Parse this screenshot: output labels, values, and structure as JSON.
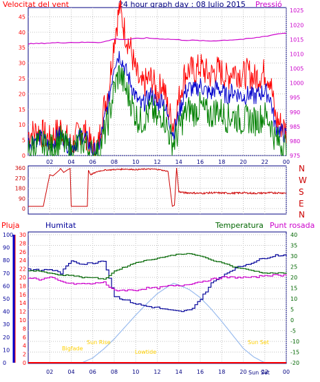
{
  "header": {
    "wind_title": "Velocitat del vent",
    "graph_title": "24 hour graph day : 08 Julio 2015",
    "pressure_title": "Pressió"
  },
  "compass": [
    "N",
    "W",
    "S",
    "E",
    "N"
  ],
  "lower_legend": {
    "rain": "Pluja",
    "humidity": "Humitat",
    "temperature": "Temperatura",
    "dewpoint": "Punt rosada"
  },
  "sun_labels": {
    "sunrise": "Sun Rise",
    "sunset": "Sun Set",
    "bigfade": "Bigfade",
    "lowtide": "Lowtide",
    "bottom_sunset": "Sun Set"
  },
  "colors": {
    "wind_gust": "#ff0000",
    "wind_avg": "#0000cc",
    "wind_green": "#008000",
    "pressure": "#cc00cc",
    "direction": "#cc0000",
    "humidity": "#000099",
    "temperature": "#006600",
    "dewpoint": "#cc00cc",
    "rain": "#ff0000",
    "solar": "#99bbee",
    "panel_border": "#000080",
    "grid": "#c0c0c0"
  },
  "chart_data": [
    {
      "type": "line",
      "name": "wind",
      "x_ticks": [
        "02",
        "04",
        "06",
        "08",
        "10",
        "12",
        "14",
        "16",
        "18",
        "20",
        "22",
        "00"
      ],
      "y_left_ticks": [
        0,
        5,
        10,
        15,
        20,
        25,
        30,
        35,
        40,
        45
      ],
      "y_right_ticks": [
        975,
        980,
        985,
        990,
        995,
        1000,
        1005,
        1010,
        1015,
        1020,
        1025
      ],
      "ylim_left": [
        0,
        48
      ],
      "ylim_right": [
        975,
        1026
      ],
      "x": [
        0,
        1,
        2,
        3,
        4,
        5,
        5.5,
        6,
        6.5,
        7,
        7.5,
        8,
        8.5,
        9,
        9.5,
        10,
        10.5,
        11,
        11.5,
        12,
        12.5,
        13,
        13.5,
        14,
        14.5,
        15,
        15.5,
        16,
        16.5,
        17,
        17.5,
        18,
        18.5,
        19,
        19.5,
        20,
        20.5,
        21,
        21.5,
        22,
        22.5,
        23,
        23.5,
        24
      ],
      "series": [
        {
          "values": [
            7,
            8,
            5,
            9,
            3,
            9,
            6,
            2,
            3,
            15,
            22,
            38,
            48,
            40,
            35,
            27,
            22,
            24,
            25,
            20,
            24,
            15,
            10,
            18,
            26,
            28,
            27,
            29,
            27,
            26,
            28,
            27,
            25,
            28,
            27,
            26,
            27,
            25,
            26,
            27,
            25,
            12,
            10,
            8
          ]
        },
        {
          "values": [
            4,
            6,
            3,
            7,
            2,
            7,
            5,
            1,
            2,
            10,
            18,
            30,
            33,
            28,
            24,
            19,
            16,
            18,
            20,
            16,
            19,
            12,
            7,
            13,
            20,
            22,
            21,
            23,
            21,
            20,
            22,
            21,
            19,
            21,
            20,
            19,
            20,
            19,
            20,
            21,
            19,
            9,
            8,
            6
          ]
        },
        {
          "values": [
            2,
            4,
            2,
            5,
            1,
            5,
            3,
            0,
            1,
            6,
            12,
            22,
            27,
            22,
            18,
            13,
            11,
            13,
            15,
            11,
            14,
            8,
            4,
            8,
            13,
            15,
            14,
            16,
            14,
            13,
            15,
            14,
            12,
            13,
            12,
            11,
            12,
            11,
            12,
            13,
            11,
            5,
            4,
            3
          ]
        },
        {
          "values": [
            1013.5,
            1013.6,
            1013.8,
            1013.9,
            1014.0,
            1014.0,
            1014.0,
            1014.1,
            1014.0,
            1014.2,
            1014.6,
            1015.2,
            1015.1,
            1015.0,
            1015.1,
            1015.3,
            1015.4,
            1015.5,
            1015.4,
            1015.3,
            1015.2,
            1015.1,
            1015.0,
            1014.9,
            1014.8,
            1014.7,
            1014.7,
            1014.6,
            1014.5,
            1014.5,
            1014.6,
            1014.7,
            1014.8,
            1014.9,
            1015.0,
            1015.1,
            1015.3,
            1015.5,
            1015.8,
            1016.1,
            1016.4,
            1016.8,
            1017.1,
            1017.2
          ]
        }
      ]
    },
    {
      "type": "line",
      "name": "wind direction",
      "y_ticks": [
        0,
        90,
        180,
        270,
        360
      ],
      "ylim": [
        0,
        360
      ],
      "x": [
        0,
        0.8,
        1.4,
        2,
        2.3,
        2.9,
        3,
        3.3,
        3.6,
        3.9,
        4,
        5,
        5.5,
        5.6,
        5.8,
        6.5,
        7,
        8,
        9,
        10,
        11,
        12,
        13,
        13.4,
        13.6,
        13.8,
        14,
        14.5,
        15,
        16,
        17,
        18,
        19,
        20,
        21,
        22,
        23,
        24
      ],
      "values": [
        20,
        20,
        20,
        300,
        290,
        340,
        355,
        320,
        340,
        355,
        20,
        20,
        20,
        340,
        300,
        330,
        340,
        345,
        350,
        345,
        350,
        348,
        330,
        20,
        30,
        360,
        150,
        140,
        140,
        135,
        140,
        138,
        136,
        140,
        135,
        138,
        140,
        138
      ]
    },
    {
      "type": "line",
      "name": "humidity / temperature / dewpoint / rain",
      "x_ticks": [
        "02",
        "04",
        "06",
        "08",
        "10",
        "12",
        "14",
        "16",
        "18",
        "20",
        "22",
        "00"
      ],
      "y_humidity_ticks": [
        0,
        10,
        20,
        30,
        40,
        50,
        60,
        70,
        80,
        90,
        100
      ],
      "y_rain_ticks": [
        0,
        2,
        4,
        6,
        8,
        10,
        12,
        14,
        16,
        18,
        20,
        22,
        24,
        26,
        28,
        30
      ],
      "y_temp_ticks": [
        -20,
        -15,
        -10,
        -5,
        0,
        5,
        10,
        15,
        20,
        25,
        30,
        35,
        40
      ],
      "x": [
        0,
        1,
        2,
        3,
        4,
        5,
        6,
        7,
        7.5,
        8,
        9,
        10,
        11,
        12,
        13,
        14,
        15,
        16,
        17,
        18,
        19,
        20,
        21,
        22,
        23,
        24
      ],
      "series": [
        {
          "values": [
            73,
            72,
            73,
            70,
            80,
            77,
            78,
            80,
            66,
            52,
            49,
            46,
            44,
            43,
            41,
            40,
            41,
            50,
            62,
            68,
            73,
            76,
            79,
            82,
            84,
            84
          ]
        },
        {
          "values": [
            23,
            23,
            22,
            21,
            21,
            20,
            20,
            19,
            21,
            23,
            25,
            27,
            28,
            29,
            30,
            31,
            31,
            30,
            28,
            27,
            25,
            24,
            23,
            22,
            22,
            22
          ]
        },
        {
          "values": [
            20,
            19,
            20,
            18,
            17,
            17,
            17,
            18,
            15,
            14,
            14,
            14,
            15,
            15,
            16,
            16,
            17,
            18,
            19,
            20,
            20,
            20,
            20,
            21,
            21,
            21
          ]
        },
        {
          "values": [
            0,
            0,
            0,
            0,
            0,
            0,
            0,
            0,
            0,
            0,
            0,
            0,
            0,
            0,
            0,
            0,
            0,
            0,
            0,
            0,
            0,
            0,
            0,
            0,
            0,
            0
          ]
        }
      ],
      "solar_percent": {
        "x": [
          5,
          6,
          7,
          8,
          9,
          10,
          11,
          12,
          13,
          13.5,
          14,
          15,
          16,
          17,
          18,
          19,
          20,
          21,
          22
        ],
        "values": [
          0,
          6,
          17,
          30,
          45,
          60,
          74,
          87,
          96,
          100,
          98,
          92,
          82,
          68,
          52,
          35,
          18,
          7,
          0
        ]
      }
    }
  ]
}
